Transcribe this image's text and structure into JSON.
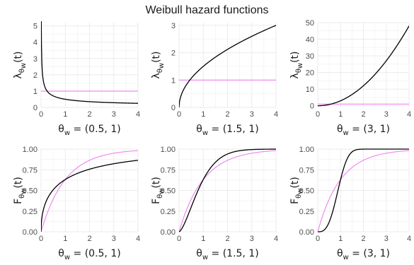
{
  "title": "Weibull hazard functions",
  "colors": {
    "weibull": "#000000",
    "exponential": "#ee82ee",
    "grid": "#ebebeb"
  },
  "chart_data": [
    {
      "type": "line",
      "row": "hazard",
      "function": "lambda",
      "params": {
        "shape": 0.5,
        "scale": 1
      },
      "xlabel": "θw = (0.5, 1)",
      "ylabel": "λθw(t)",
      "xlim": [
        0,
        4
      ],
      "ylim": [
        0,
        5.2
      ],
      "xticks": [
        0,
        1,
        2,
        3,
        4
      ],
      "yticks": [
        0,
        1,
        2,
        3,
        4,
        5
      ],
      "series": [
        {
          "x": [
            0.01,
            0.05,
            0.1,
            0.2,
            0.5,
            1,
            2,
            3,
            4
          ],
          "y": [
            5.0,
            2.24,
            1.58,
            1.12,
            0.71,
            0.5,
            0.35,
            0.29,
            0.25
          ]
        },
        {
          "x": [
            0,
            4
          ],
          "y": [
            1,
            1
          ]
        }
      ]
    },
    {
      "type": "line",
      "row": "hazard",
      "function": "lambda",
      "params": {
        "shape": 1.5,
        "scale": 1
      },
      "xlabel": "θw = (1.5, 1)",
      "ylabel": "λθw(t)",
      "xlim": [
        0,
        4
      ],
      "ylim": [
        0,
        3.1
      ],
      "xticks": [
        0,
        1,
        2,
        3,
        4
      ],
      "yticks": [
        0,
        1,
        2,
        3
      ],
      "series": [
        {
          "x": [
            0,
            0.5,
            1,
            2,
            3,
            4
          ],
          "y": [
            0,
            1.06,
            1.5,
            2.12,
            2.6,
            3.0
          ]
        },
        {
          "x": [
            0,
            4
          ],
          "y": [
            1,
            1
          ]
        }
      ]
    },
    {
      "type": "line",
      "row": "hazard",
      "function": "lambda",
      "params": {
        "shape": 3,
        "scale": 1
      },
      "xlabel": "θw = (3, 1)",
      "ylabel": "λθw(t)",
      "xlim": [
        0,
        4
      ],
      "ylim": [
        -1,
        50
      ],
      "xticks": [
        0,
        1,
        2,
        3,
        4
      ],
      "yticks": [
        0,
        10,
        20,
        30,
        40,
        50
      ],
      "series": [
        {
          "x": [
            0,
            1,
            2,
            3,
            4
          ],
          "y": [
            0,
            3,
            12,
            27,
            48
          ]
        },
        {
          "x": [
            0,
            4
          ],
          "y": [
            1,
            1
          ]
        }
      ]
    },
    {
      "type": "line",
      "row": "cdf",
      "function": "F",
      "params": {
        "shape": 0.5,
        "scale": 1
      },
      "xlabel": "θw = (0.5, 1)",
      "ylabel": "Fθw(t)",
      "xlim": [
        0,
        4
      ],
      "ylim": [
        0,
        1
      ],
      "xticks": [
        0,
        1,
        2,
        3,
        4
      ],
      "yticks": [
        "0.00",
        "0.25",
        "0.50",
        "0.75",
        "1.00"
      ],
      "series": [
        {
          "x": [
            0,
            0.5,
            1,
            2,
            3,
            4
          ],
          "y": [
            0,
            0.51,
            0.63,
            0.76,
            0.82,
            0.86
          ]
        },
        {
          "x": [
            0,
            0.5,
            1,
            2,
            3,
            4
          ],
          "y": [
            0,
            0.39,
            0.63,
            0.86,
            0.95,
            0.98
          ]
        }
      ]
    },
    {
      "type": "line",
      "row": "cdf",
      "function": "F",
      "params": {
        "shape": 1.5,
        "scale": 1
      },
      "xlabel": "θw = (1.5, 1)",
      "ylabel": "Fθw(t)",
      "xlim": [
        0,
        4
      ],
      "ylim": [
        0,
        1
      ],
      "xticks": [
        0,
        1,
        2,
        3,
        4
      ],
      "yticks": [
        "0.00",
        "0.25",
        "0.50",
        "0.75",
        "1.00"
      ],
      "series": [
        {
          "x": [
            0,
            0.5,
            1,
            1.5,
            2,
            3,
            4
          ],
          "y": [
            0,
            0.3,
            0.63,
            0.84,
            0.94,
            0.99,
            1.0
          ]
        },
        {
          "x": [
            0,
            0.5,
            1,
            2,
            3,
            4
          ],
          "y": [
            0,
            0.39,
            0.63,
            0.86,
            0.95,
            0.98
          ]
        }
      ]
    },
    {
      "type": "line",
      "row": "cdf",
      "function": "F",
      "params": {
        "shape": 3,
        "scale": 1
      },
      "xlabel": "θw = (3, 1)",
      "ylabel": "Fθw(t)",
      "xlim": [
        0,
        4
      ],
      "ylim": [
        0,
        1
      ],
      "xticks": [
        0,
        1,
        2,
        3,
        4
      ],
      "yticks": [
        "0.00",
        "0.25",
        "0.50",
        "0.75",
        "1.00"
      ],
      "series": [
        {
          "x": [
            0,
            0.5,
            1,
            1.5,
            2,
            3,
            4
          ],
          "y": [
            0,
            0.12,
            0.63,
            0.97,
            1.0,
            1.0,
            1.0
          ]
        },
        {
          "x": [
            0,
            0.5,
            1,
            2,
            3,
            4
          ],
          "y": [
            0,
            0.39,
            0.63,
            0.86,
            0.95,
            0.98
          ]
        }
      ]
    }
  ]
}
